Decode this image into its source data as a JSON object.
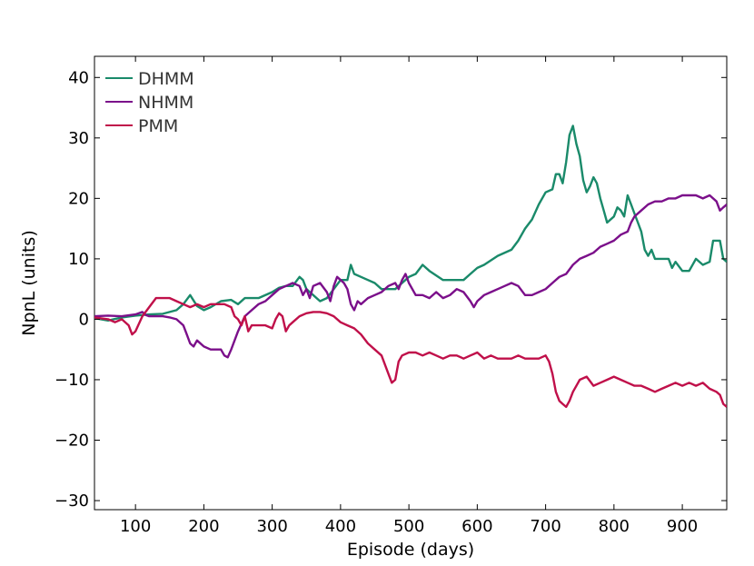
{
  "chart_data": {
    "type": "line",
    "title": "",
    "xlabel": "Episode (days)",
    "ylabel": "NpnL (units)",
    "xlim": [
      40,
      965
    ],
    "ylim": [
      -31.5,
      43.5
    ],
    "xticks": [
      100,
      200,
      300,
      400,
      500,
      600,
      700,
      800,
      900
    ],
    "yticks": [
      -30,
      -20,
      -10,
      0,
      10,
      20,
      30,
      40
    ],
    "x_tick_labels": [
      "100",
      "200",
      "300",
      "400",
      "500",
      "600",
      "700",
      "800",
      "900"
    ],
    "y_tick_labels": [
      "−30",
      "−20",
      "−10",
      "0",
      "10",
      "20",
      "30",
      "40"
    ],
    "legend_position": "top-left",
    "grid": false,
    "series": [
      {
        "name": "DHMM",
        "color": "#1a8a6a",
        "points": [
          [
            40,
            0.2
          ],
          [
            60,
            -0.2
          ],
          [
            80,
            0.3
          ],
          [
            100,
            0.6
          ],
          [
            120,
            0.8
          ],
          [
            140,
            0.9
          ],
          [
            160,
            1.5
          ],
          [
            170,
            2.5
          ],
          [
            180,
            4.0
          ],
          [
            190,
            2.2
          ],
          [
            200,
            1.5
          ],
          [
            210,
            2.0
          ],
          [
            225,
            3.0
          ],
          [
            240,
            3.2
          ],
          [
            250,
            2.5
          ],
          [
            260,
            3.5
          ],
          [
            280,
            3.5
          ],
          [
            300,
            4.5
          ],
          [
            310,
            5.2
          ],
          [
            320,
            5.5
          ],
          [
            330,
            5.5
          ],
          [
            340,
            7.0
          ],
          [
            345,
            6.5
          ],
          [
            350,
            5.0
          ],
          [
            360,
            4.0
          ],
          [
            370,
            3.0
          ],
          [
            380,
            3.5
          ],
          [
            390,
            5.0
          ],
          [
            400,
            6.5
          ],
          [
            410,
            6.5
          ],
          [
            415,
            9.0
          ],
          [
            420,
            7.5
          ],
          [
            430,
            7.0
          ],
          [
            440,
            6.5
          ],
          [
            450,
            6.0
          ],
          [
            460,
            5.0
          ],
          [
            480,
            5.0
          ],
          [
            490,
            6.0
          ],
          [
            500,
            7.0
          ],
          [
            510,
            7.5
          ],
          [
            520,
            9.0
          ],
          [
            530,
            8.0
          ],
          [
            550,
            6.5
          ],
          [
            580,
            6.5
          ],
          [
            590,
            7.5
          ],
          [
            600,
            8.5
          ],
          [
            610,
            9.0
          ],
          [
            630,
            10.5
          ],
          [
            650,
            11.5
          ],
          [
            660,
            13.0
          ],
          [
            670,
            15.0
          ],
          [
            680,
            16.5
          ],
          [
            690,
            19.0
          ],
          [
            700,
            21.0
          ],
          [
            710,
            21.5
          ],
          [
            715,
            24.0
          ],
          [
            720,
            24.0
          ],
          [
            725,
            22.5
          ],
          [
            730,
            26.0
          ],
          [
            735,
            30.5
          ],
          [
            740,
            32.0
          ],
          [
            745,
            29.0
          ],
          [
            750,
            27.0
          ],
          [
            755,
            23.0
          ],
          [
            760,
            21.0
          ],
          [
            765,
            22.0
          ],
          [
            770,
            23.5
          ],
          [
            775,
            22.5
          ],
          [
            780,
            20.0
          ],
          [
            785,
            18.0
          ],
          [
            790,
            16.0
          ],
          [
            800,
            17.0
          ],
          [
            805,
            18.5
          ],
          [
            810,
            18.0
          ],
          [
            815,
            17.0
          ],
          [
            820,
            20.5
          ],
          [
            825,
            19.0
          ],
          [
            830,
            17.5
          ],
          [
            835,
            16.0
          ],
          [
            840,
            14.5
          ],
          [
            845,
            11.5
          ],
          [
            850,
            10.5
          ],
          [
            855,
            11.5
          ],
          [
            860,
            10.0
          ],
          [
            870,
            10.0
          ],
          [
            880,
            10.0
          ],
          [
            885,
            8.5
          ],
          [
            890,
            9.5
          ],
          [
            900,
            8.0
          ],
          [
            910,
            8.0
          ],
          [
            920,
            10.0
          ],
          [
            930,
            9.0
          ],
          [
            940,
            9.5
          ],
          [
            945,
            13.0
          ],
          [
            955,
            13.0
          ],
          [
            960,
            10.0
          ],
          [
            965,
            9.5
          ]
        ]
      },
      {
        "name": "NHMM",
        "color": "#7b0f8a",
        "points": [
          [
            40,
            0.5
          ],
          [
            60,
            0.6
          ],
          [
            80,
            0.5
          ],
          [
            100,
            0.8
          ],
          [
            110,
            1.2
          ],
          [
            115,
            0.7
          ],
          [
            120,
            0.5
          ],
          [
            130,
            0.5
          ],
          [
            140,
            0.5
          ],
          [
            150,
            0.3
          ],
          [
            160,
            0.0
          ],
          [
            170,
            -1.0
          ],
          [
            175,
            -2.5
          ],
          [
            180,
            -4.0
          ],
          [
            185,
            -4.5
          ],
          [
            190,
            -3.5
          ],
          [
            200,
            -4.5
          ],
          [
            210,
            -5.0
          ],
          [
            225,
            -5.0
          ],
          [
            230,
            -6.0
          ],
          [
            235,
            -6.3
          ],
          [
            240,
            -5.0
          ],
          [
            250,
            -2.0
          ],
          [
            260,
            0.5
          ],
          [
            270,
            1.5
          ],
          [
            280,
            2.5
          ],
          [
            290,
            3.0
          ],
          [
            300,
            4.0
          ],
          [
            310,
            5.0
          ],
          [
            320,
            5.5
          ],
          [
            330,
            6.0
          ],
          [
            340,
            5.5
          ],
          [
            345,
            4.0
          ],
          [
            350,
            5.0
          ],
          [
            355,
            3.5
          ],
          [
            360,
            5.5
          ],
          [
            370,
            6.0
          ],
          [
            380,
            4.5
          ],
          [
            385,
            3.0
          ],
          [
            390,
            5.5
          ],
          [
            395,
            7.0
          ],
          [
            400,
            6.5
          ],
          [
            405,
            6.0
          ],
          [
            410,
            5.0
          ],
          [
            415,
            2.5
          ],
          [
            420,
            1.5
          ],
          [
            425,
            3.0
          ],
          [
            430,
            2.5
          ],
          [
            440,
            3.5
          ],
          [
            450,
            4.0
          ],
          [
            460,
            4.5
          ],
          [
            470,
            5.5
          ],
          [
            480,
            6.0
          ],
          [
            485,
            5.0
          ],
          [
            490,
            6.5
          ],
          [
            495,
            7.5
          ],
          [
            500,
            6.0
          ],
          [
            510,
            4.0
          ],
          [
            520,
            4.0
          ],
          [
            530,
            3.5
          ],
          [
            540,
            4.5
          ],
          [
            550,
            3.5
          ],
          [
            560,
            4.0
          ],
          [
            570,
            5.0
          ],
          [
            580,
            4.5
          ],
          [
            590,
            3.0
          ],
          [
            595,
            2.0
          ],
          [
            600,
            3.0
          ],
          [
            610,
            4.0
          ],
          [
            620,
            4.5
          ],
          [
            630,
            5.0
          ],
          [
            640,
            5.5
          ],
          [
            650,
            6.0
          ],
          [
            660,
            5.5
          ],
          [
            670,
            4.0
          ],
          [
            680,
            4.0
          ],
          [
            690,
            4.5
          ],
          [
            700,
            5.0
          ],
          [
            710,
            6.0
          ],
          [
            720,
            7.0
          ],
          [
            730,
            7.5
          ],
          [
            740,
            9.0
          ],
          [
            750,
            10.0
          ],
          [
            760,
            10.5
          ],
          [
            770,
            11.0
          ],
          [
            780,
            12.0
          ],
          [
            790,
            12.5
          ],
          [
            800,
            13.0
          ],
          [
            810,
            14.0
          ],
          [
            820,
            14.5
          ],
          [
            825,
            16.0
          ],
          [
            830,
            17.0
          ],
          [
            840,
            18.0
          ],
          [
            850,
            19.0
          ],
          [
            860,
            19.5
          ],
          [
            870,
            19.5
          ],
          [
            880,
            20.0
          ],
          [
            890,
            20.0
          ],
          [
            900,
            20.5
          ],
          [
            910,
            20.5
          ],
          [
            920,
            20.5
          ],
          [
            930,
            20.0
          ],
          [
            940,
            20.5
          ],
          [
            950,
            19.5
          ],
          [
            955,
            18.0
          ],
          [
            960,
            18.5
          ],
          [
            965,
            19.0
          ]
        ]
      },
      {
        "name": "PMM",
        "color": "#c0104a",
        "points": [
          [
            40,
            0.3
          ],
          [
            60,
            0.0
          ],
          [
            70,
            -0.5
          ],
          [
            80,
            0.0
          ],
          [
            90,
            -1.0
          ],
          [
            95,
            -2.5
          ],
          [
            100,
            -2.0
          ],
          [
            110,
            0.5
          ],
          [
            120,
            2.0
          ],
          [
            130,
            3.5
          ],
          [
            140,
            3.5
          ],
          [
            150,
            3.5
          ],
          [
            160,
            3.0
          ],
          [
            170,
            2.5
          ],
          [
            180,
            2.0
          ],
          [
            190,
            2.5
          ],
          [
            200,
            2.0
          ],
          [
            210,
            2.5
          ],
          [
            220,
            2.5
          ],
          [
            230,
            2.5
          ],
          [
            240,
            2.0
          ],
          [
            245,
            0.5
          ],
          [
            250,
            0.0
          ],
          [
            255,
            -1.0
          ],
          [
            260,
            0.5
          ],
          [
            265,
            -2.0
          ],
          [
            270,
            -1.0
          ],
          [
            280,
            -1.0
          ],
          [
            290,
            -1.0
          ],
          [
            300,
            -1.5
          ],
          [
            305,
            0.0
          ],
          [
            310,
            1.0
          ],
          [
            315,
            0.5
          ],
          [
            320,
            -2.0
          ],
          [
            325,
            -1.0
          ],
          [
            330,
            -0.5
          ],
          [
            340,
            0.5
          ],
          [
            350,
            1.0
          ],
          [
            360,
            1.2
          ],
          [
            370,
            1.2
          ],
          [
            380,
            1.0
          ],
          [
            390,
            0.5
          ],
          [
            400,
            -0.5
          ],
          [
            410,
            -1.0
          ],
          [
            420,
            -1.5
          ],
          [
            430,
            -2.5
          ],
          [
            440,
            -4.0
          ],
          [
            450,
            -5.0
          ],
          [
            460,
            -6.0
          ],
          [
            470,
            -9.0
          ],
          [
            475,
            -10.5
          ],
          [
            480,
            -10.0
          ],
          [
            485,
            -7.0
          ],
          [
            490,
            -6.0
          ],
          [
            500,
            -5.5
          ],
          [
            510,
            -5.5
          ],
          [
            520,
            -6.0
          ],
          [
            530,
            -5.5
          ],
          [
            540,
            -6.0
          ],
          [
            550,
            -6.5
          ],
          [
            560,
            -6.0
          ],
          [
            570,
            -6.0
          ],
          [
            580,
            -6.5
          ],
          [
            590,
            -6.0
          ],
          [
            600,
            -5.5
          ],
          [
            610,
            -6.5
          ],
          [
            620,
            -6.0
          ],
          [
            630,
            -6.5
          ],
          [
            640,
            -6.5
          ],
          [
            650,
            -6.5
          ],
          [
            660,
            -6.0
          ],
          [
            670,
            -6.5
          ],
          [
            680,
            -6.5
          ],
          [
            690,
            -6.5
          ],
          [
            700,
            -6.0
          ],
          [
            705,
            -7.0
          ],
          [
            710,
            -9.0
          ],
          [
            715,
            -12.0
          ],
          [
            720,
            -13.5
          ],
          [
            725,
            -14.0
          ],
          [
            730,
            -14.5
          ],
          [
            735,
            -13.5
          ],
          [
            740,
            -12.0
          ],
          [
            750,
            -10.0
          ],
          [
            760,
            -9.5
          ],
          [
            770,
            -11.0
          ],
          [
            780,
            -10.5
          ],
          [
            790,
            -10.0
          ],
          [
            800,
            -9.5
          ],
          [
            810,
            -10.0
          ],
          [
            820,
            -10.5
          ],
          [
            830,
            -11.0
          ],
          [
            840,
            -11.0
          ],
          [
            850,
            -11.5
          ],
          [
            860,
            -12.0
          ],
          [
            870,
            -11.5
          ],
          [
            880,
            -11.0
          ],
          [
            890,
            -10.5
          ],
          [
            900,
            -11.0
          ],
          [
            910,
            -10.5
          ],
          [
            920,
            -11.0
          ],
          [
            930,
            -10.5
          ],
          [
            940,
            -11.5
          ],
          [
            950,
            -12.0
          ],
          [
            955,
            -12.5
          ],
          [
            960,
            -14.0
          ],
          [
            965,
            -14.5
          ]
        ]
      }
    ]
  }
}
